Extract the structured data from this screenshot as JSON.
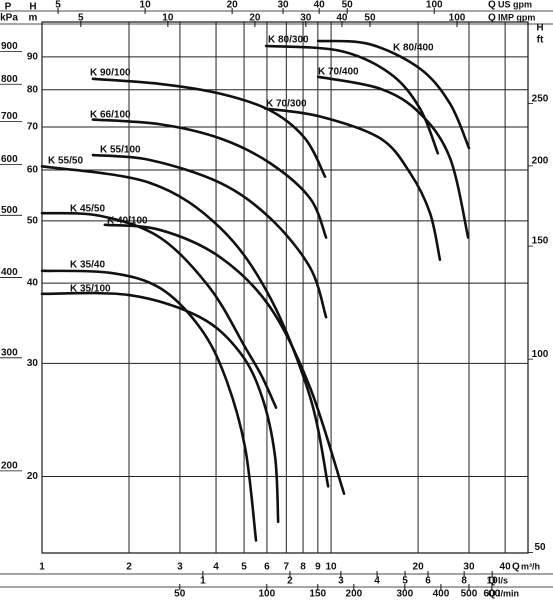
{
  "chart_data": {
    "type": "line",
    "xscale": "log",
    "yscale": "log",
    "grid": true,
    "color": "#111111",
    "x_axis_title": {
      "symbol": "Q",
      "unit": "m³/h"
    },
    "y_axis_title": {
      "symbol": "H",
      "unit": "m"
    },
    "xlim": [
      1,
      48
    ],
    "ylim": [
      15.2,
      102
    ],
    "xticks": [
      1,
      2,
      3,
      4,
      5,
      6,
      7,
      8,
      9,
      10,
      20,
      30,
      40
    ],
    "yticks": [
      20,
      30,
      40,
      50,
      60,
      70,
      80,
      90
    ],
    "secondary_x_axes": [
      {
        "side": "top",
        "symbol": "Q",
        "unit": "US gpm",
        "lim": [
          4.4,
          211
        ],
        "ticks": [
          5,
          10,
          20,
          30,
          40,
          50,
          100
        ]
      },
      {
        "side": "top",
        "symbol": "Q",
        "unit": "IMP gpm",
        "lim": [
          3.67,
          176
        ],
        "ticks": [
          5,
          10,
          20,
          30,
          40,
          50,
          100
        ]
      },
      {
        "side": "bottom",
        "symbol": "Q",
        "unit": "l/s",
        "lim": [
          0.278,
          13.3
        ],
        "ticks": [
          1,
          2,
          3,
          4,
          5,
          6,
          8,
          10
        ]
      },
      {
        "side": "bottom",
        "symbol": "Q",
        "unit": "l/min",
        "lim": [
          16.7,
          800
        ],
        "ticks": [
          50,
          100,
          150,
          200,
          300,
          400,
          500,
          600
        ]
      }
    ],
    "secondary_y_axes": [
      {
        "side": "left",
        "symbol": "P",
        "unit": "kPa",
        "lim": [
          149,
          1000
        ],
        "ticks": [
          200,
          300,
          400,
          500,
          600,
          700,
          800,
          900
        ]
      },
      {
        "side": "right",
        "symbol": "H",
        "unit": "ft",
        "lim": [
          49.9,
          335
        ],
        "ticks": [
          50,
          100,
          150,
          200,
          250
        ]
      }
    ],
    "series": [
      {
        "name": "K 90/100",
        "x": [
          1.5,
          2.56,
          4.13,
          6.15,
          8.13,
          9.53
        ],
        "values": [
          83.2,
          81.7,
          78.9,
          74.3,
          67.2,
          58.6
        ]
      },
      {
        "name": "K 66/100",
        "x": [
          1.5,
          2.56,
          4.13,
          6.15,
          8.46,
          9.61
        ],
        "values": [
          71.9,
          70.7,
          67.2,
          61.5,
          54.2,
          47.1
        ]
      },
      {
        "name": "K 55/100",
        "x": [
          1.5,
          2.36,
          4.13,
          6.15,
          8.46,
          9.61
        ],
        "values": [
          63.3,
          62.2,
          57.3,
          50.5,
          42.3,
          35.4
        ]
      },
      {
        "name": "K 55/50",
        "x": [
          1.0,
          2.36,
          4.13,
          6.15,
          8.46,
          9.77
        ],
        "values": [
          60.8,
          57.3,
          48.8,
          38.0,
          26.6,
          19.3
        ]
      },
      {
        "name": "K 45/50",
        "x": [
          1.0,
          1.59,
          2.56,
          3.81,
          5.04,
          5.77,
          6.45
        ],
        "values": [
          51.4,
          50.9,
          47.1,
          39.3,
          31.8,
          28.6,
          25.6
        ]
      },
      {
        "name": "K 40/100",
        "x": [
          1.65,
          2.56,
          4.13,
          6.15,
          8.46,
          11.09
        ],
        "values": [
          49.3,
          48.4,
          43.9,
          36.7,
          27.5,
          18.8
        ]
      },
      {
        "name": "K 35/40",
        "x": [
          1.0,
          1.72,
          2.56,
          3.52,
          4.3,
          5.04,
          5.5
        ],
        "values": [
          41.8,
          41.5,
          39.3,
          34.1,
          28.6,
          22.2,
          15.9
        ]
      },
      {
        "name": "K 35/100",
        "x": [
          1.0,
          2.02,
          3.52,
          4.84,
          5.77,
          6.4,
          6.56
        ],
        "values": [
          38.5,
          38.3,
          35.4,
          31.2,
          26.6,
          21.5,
          17.0
        ]
      },
      {
        "name": "K 70/300",
        "x": [
          5.91,
          9.16,
          14.8,
          18.8,
          22.0,
          23.8
        ],
        "values": [
          74.8,
          72.7,
          67.2,
          59.3,
          51.4,
          43.5
        ]
      },
      {
        "name": "K 80/300",
        "x": [
          5.96,
          10.7,
          16.0,
          20.3,
          23.4
        ],
        "values": [
          93.6,
          92.0,
          84.8,
          74.8,
          63.7
        ]
      },
      {
        "name": "K 70/400",
        "x": [
          9.02,
          14.8,
          20.3,
          25.8,
          29.8
        ],
        "values": [
          83.8,
          80.3,
          73.5,
          62.6,
          47.1
        ]
      },
      {
        "name": "K 80/400",
        "x": [
          9.02,
          13.6,
          20.3,
          25.8,
          30.0
        ],
        "values": [
          95.3,
          94.2,
          86.3,
          76.1,
          64.9
        ]
      }
    ]
  }
}
